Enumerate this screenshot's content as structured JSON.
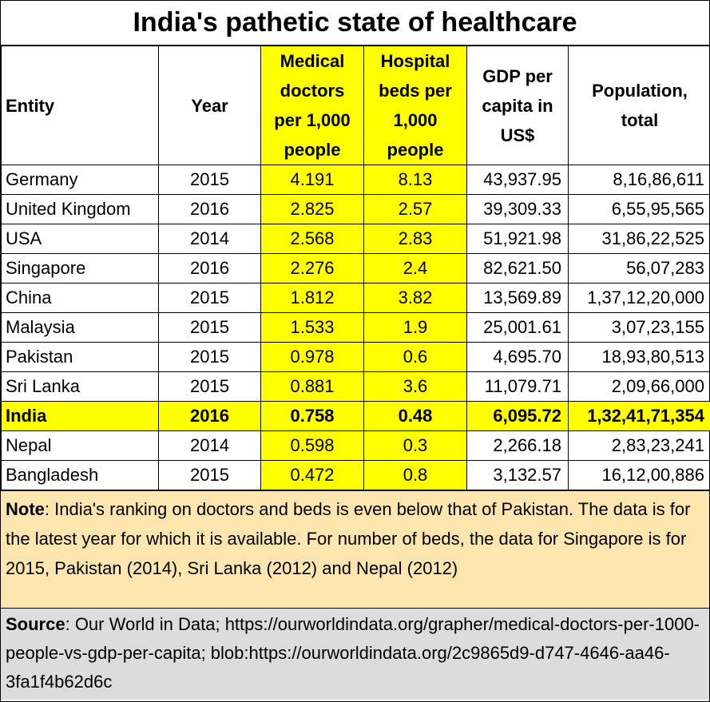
{
  "title": "India's pathetic state of healthcare",
  "headers": {
    "entity": "Entity",
    "year": "Year",
    "doctors": "Medical doctors per 1,000 people",
    "beds": "Hospital beds per 1,000 people",
    "gdp": "GDP per capita in US$",
    "population": "Population, total"
  },
  "rows": [
    {
      "entity": "Germany",
      "year": "2015",
      "doctors": "4.191",
      "beds": "8.13",
      "gdp": "43,937.95",
      "population": "8,16,86,611"
    },
    {
      "entity": "United Kingdom",
      "year": "2016",
      "doctors": "2.825",
      "beds": "2.57",
      "gdp": "39,309.33",
      "population": "6,55,95,565"
    },
    {
      "entity": "USA",
      "year": "2014",
      "doctors": "2.568",
      "beds": "2.83",
      "gdp": "51,921.98",
      "population": "31,86,22,525"
    },
    {
      "entity": "Singapore",
      "year": "2016",
      "doctors": "2.276",
      "beds": "2.4",
      "gdp": "82,621.50",
      "population": "56,07,283"
    },
    {
      "entity": "China",
      "year": "2015",
      "doctors": "1.812",
      "beds": "3.82",
      "gdp": "13,569.89",
      "population": "1,37,12,20,000"
    },
    {
      "entity": "Malaysia",
      "year": "2015",
      "doctors": "1.533",
      "beds": "1.9",
      "gdp": "25,001.61",
      "population": "3,07,23,155"
    },
    {
      "entity": "Pakistan",
      "year": "2015",
      "doctors": "0.978",
      "beds": "0.6",
      "gdp": "4,695.70",
      "population": "18,93,80,513"
    },
    {
      "entity": "Sri Lanka",
      "year": "2015",
      "doctors": "0.881",
      "beds": "3.6",
      "gdp": "11,079.71",
      "population": "2,09,66,000"
    },
    {
      "entity": "India",
      "year": "2016",
      "doctors": "0.758",
      "beds": "0.48",
      "gdp": "6,095.72",
      "population": "1,32,41,71,354"
    },
    {
      "entity": "Nepal",
      "year": "2014",
      "doctors": "0.598",
      "beds": "0.3",
      "gdp": "2,266.18",
      "population": "2,83,23,241"
    },
    {
      "entity": "Bangladesh",
      "year": "2015",
      "doctors": "0.472",
      "beds": "0.8",
      "gdp": "3,132.57",
      "population": "16,12,00,886"
    }
  ],
  "note": {
    "label": "Note",
    "text": ":  India's ranking on doctors and beds is even below that of Pakistan. The data is for the latest year for which it is available. For number of beds, the data for Singapore is for 2015, Pakistan (2014), Sri Lanka (2012) and Nepal (2012)"
  },
  "source": {
    "label": "Source",
    "text": ": Our World in Data; https://ourworldindata.org/grapher/medical-doctors-per-1000-people-vs-gdp-per-capita; blob:https://ourworldindata.org/2c9865d9-d747-4646-aa46-3fa1f4b62d6c"
  },
  "colors": {
    "highlight": "#ffff00",
    "note_background": "#fde5b0",
    "source_background": "#dcdcdc"
  }
}
